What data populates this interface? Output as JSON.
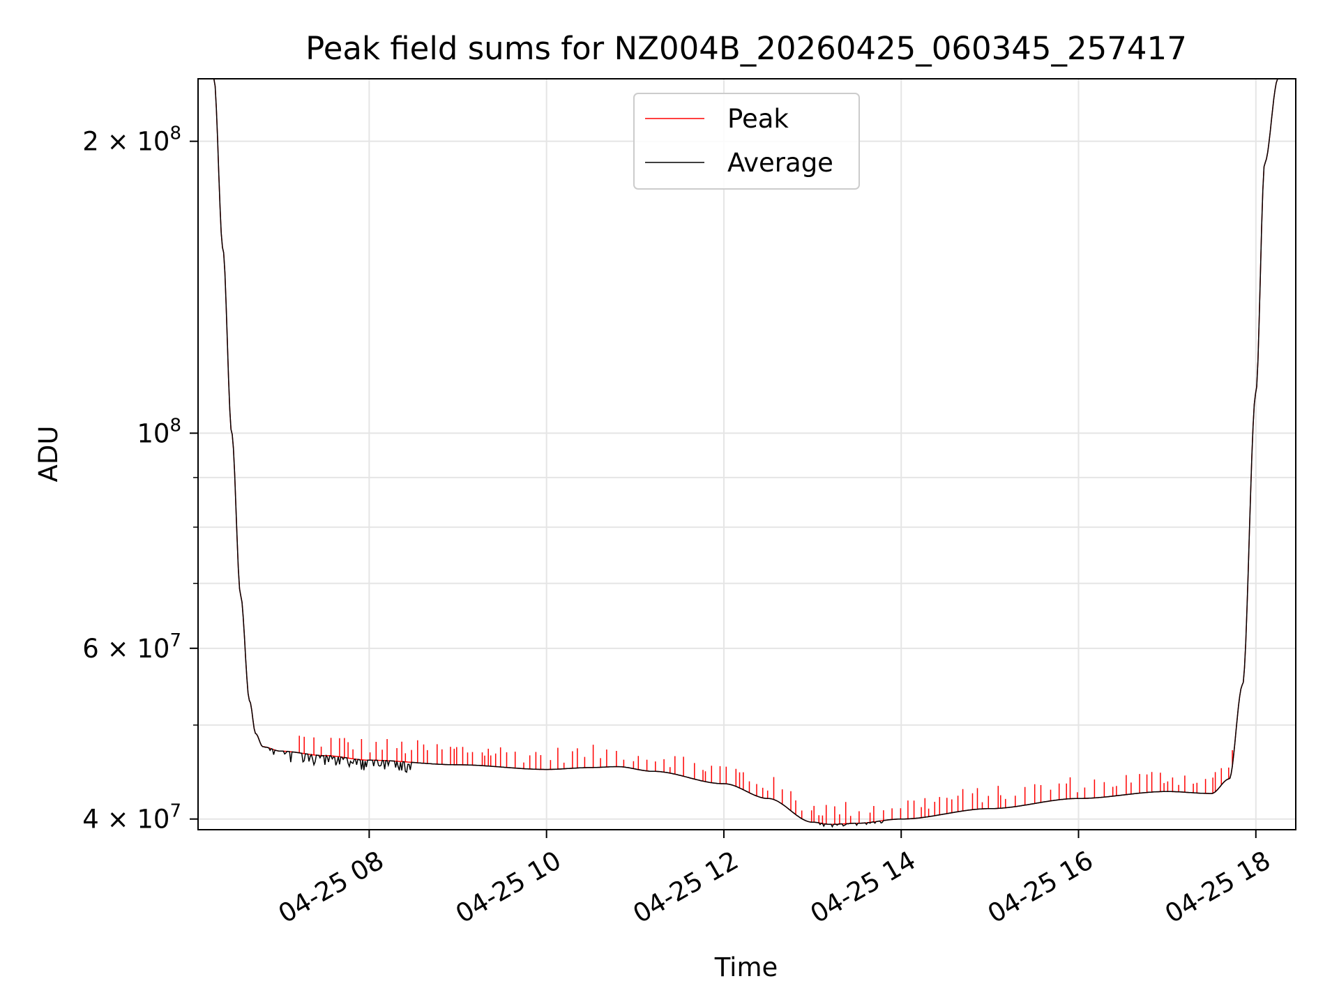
{
  "chart_data": {
    "type": "line",
    "title": "Peak field sums for NZ004B_20260425_060345_257417",
    "xlabel": "Time",
    "ylabel": "ADU",
    "y_scale": "log",
    "ylim": [
      39000000,
      232000000
    ],
    "xlim_hours": [
      6.07,
      18.45
    ],
    "grid": true,
    "legend_position": "upper center",
    "x_ticks": [
      {
        "hour": 8,
        "label": "04-25 08"
      },
      {
        "hour": 10,
        "label": "04-25 10"
      },
      {
        "hour": 12,
        "label": "04-25 12"
      },
      {
        "hour": 14,
        "label": "04-25 14"
      },
      {
        "hour": 16,
        "label": "04-25 16"
      },
      {
        "hour": 18,
        "label": "04-25 18"
      }
    ],
    "y_major_ticks": [
      {
        "value": 40000000,
        "mantissa": "4",
        "exponent": "7"
      },
      {
        "value": 60000000,
        "mantissa": "6",
        "exponent": "7"
      },
      {
        "value": 100000000,
        "mantissa": "",
        "exponent": "8"
      },
      {
        "value": 200000000,
        "mantissa": "2",
        "exponent": "8"
      }
    ],
    "y_minor_ticks": [
      50000000,
      70000000,
      80000000,
      90000000
    ],
    "series": [
      {
        "name": "Peak",
        "color": "#ff0000",
        "description_points_note": "baseline follows Average with frequent upward spikes of ~1-4%",
        "x_hours": [
          6.07,
          6.25,
          6.35,
          6.45,
          6.55,
          6.65,
          6.72,
          6.8,
          7.0,
          7.5,
          8.0,
          9.0,
          10.0,
          10.5,
          10.8,
          11.2,
          12.0,
          12.5,
          13.0,
          13.2,
          13.5,
          14.0,
          15.0,
          16.0,
          17.0,
          17.5,
          17.7,
          17.85,
          18.0,
          18.1,
          18.25,
          18.45
        ],
        "values": [
          232000000,
          232000000,
          155000000,
          100000000,
          68000000,
          53000000,
          49000000,
          47500000,
          47000000,
          46500000,
          46000000,
          45500000,
          45000000,
          45200000,
          45300000,
          44800000,
          43500000,
          42000000,
          39700000,
          39500000,
          39600000,
          40000000,
          41000000,
          42000000,
          42700000,
          42500000,
          44000000,
          55000000,
          110000000,
          190000000,
          232000000,
          232000000
        ],
        "spike_frequency_per_hour": 14,
        "spike_ratio": 1.035
      },
      {
        "name": "Average",
        "color": "#000000",
        "x_hours": [
          6.07,
          6.25,
          6.35,
          6.45,
          6.55,
          6.65,
          6.72,
          6.8,
          7.0,
          7.5,
          8.0,
          9.0,
          10.0,
          10.5,
          10.8,
          11.2,
          12.0,
          12.5,
          13.0,
          13.2,
          13.5,
          14.0,
          15.0,
          16.0,
          17.0,
          17.5,
          17.7,
          17.85,
          18.0,
          18.1,
          18.25,
          18.45
        ],
        "values": [
          232000000,
          232000000,
          155000000,
          100000000,
          68000000,
          53000000,
          49000000,
          47500000,
          47000000,
          46500000,
          46000000,
          45500000,
          45000000,
          45200000,
          45300000,
          44800000,
          43500000,
          42000000,
          39700000,
          39500000,
          39600000,
          40000000,
          41000000,
          42000000,
          42700000,
          42500000,
          44000000,
          55000000,
          110000000,
          190000000,
          232000000,
          232000000
        ],
        "noise_dips_until_hour": 8.5
      }
    ]
  }
}
